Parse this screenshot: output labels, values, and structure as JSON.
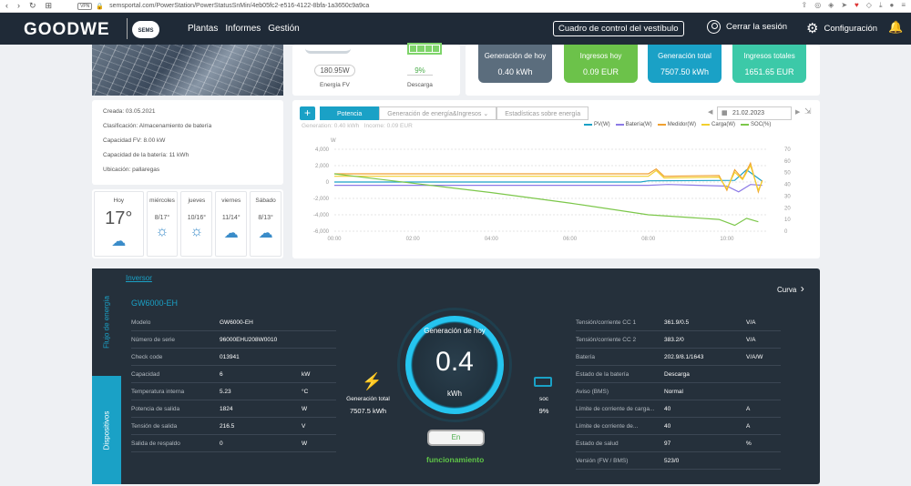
{
  "browser": {
    "url": "semsportal.com/PowerStation/PowerStatusSnMin/4eb05fc2-e516-4122-8bfa-1a3650c9a9ca",
    "vpn": "VPN"
  },
  "header": {
    "logo": "GOODWE",
    "sems": "SEMS",
    "menu": [
      "Plantas",
      "Informes",
      "Gestión"
    ],
    "lobby_button": "Cuadro de control del vestíbulo",
    "logout": "Cerrar la sesión",
    "config": "Configuración"
  },
  "plant_info": {
    "created": "Creada:  03.05.2021",
    "classification": "Clasificación:   Almacenamiento de batería",
    "pv_capacity": "Capacidad FV:  8.00 kW",
    "battery_capacity": "Capacidad de la batería:   11 kWh",
    "location": "Ubicación:  pallaregas"
  },
  "weather": [
    {
      "day": "Hoy",
      "temp": "17°",
      "icon": "cloud-icon"
    },
    {
      "day": "miércoles",
      "temp": "8/17°",
      "icon": "sun-icon"
    },
    {
      "day": "jueves",
      "temp": "10/16°",
      "icon": "sun-icon"
    },
    {
      "day": "viernes",
      "temp": "11/14°",
      "icon": "cloud-icon"
    },
    {
      "day": "Sábado",
      "temp": "8/13°",
      "icon": "cloud-icon"
    }
  ],
  "flow": {
    "pv_value": "180.95W",
    "pv_label": "Energía FV",
    "discharge_value": "9%",
    "discharge_label": "Descarga"
  },
  "summary": [
    {
      "title": "Generación de hoy",
      "value": "0.40 kWh",
      "color": "#5b6d7d"
    },
    {
      "title": "Ingresos hoy",
      "value": "0.09 EUR",
      "color": "#6cc24a"
    },
    {
      "title": "Generación total",
      "value": "7507.50 kWh",
      "color": "#1aa1c6"
    },
    {
      "title": "Ingresos totales",
      "value": "1651.65 EUR",
      "color": "#3cc9a8"
    }
  ],
  "chart_tabs": {
    "tab1": "Potencia",
    "tab2": "Generación de energía&Ingresos",
    "tab3": "Estadísticas sobre energía",
    "date": "21.02.2023",
    "generation": "Generation: 0.40 kWh",
    "income": "Income: 0.09 EUR"
  },
  "chart_data": {
    "type": "line",
    "x_ticks": [
      "00:00",
      "02:00",
      "04:00",
      "06:00",
      "08:00",
      "10:00"
    ],
    "y_left_label": "W",
    "y_left_ticks": [
      "4,000",
      "2,000",
      "0",
      "-2,000",
      "-4,000",
      "-6,000"
    ],
    "y_right_ticks": [
      "70",
      "60",
      "50",
      "40",
      "30",
      "20",
      "10",
      "0"
    ],
    "ylim_left": [
      -6000,
      4000
    ],
    "ylim_right": [
      0,
      70
    ],
    "grid": true,
    "legend_position": "top-right",
    "series": [
      {
        "name": "PV(W)",
        "color": "#1aa1c6",
        "axis": "left",
        "x": [
          0,
          7.8,
          8.0,
          10.2,
          10.5,
          10.9
        ],
        "y": [
          0,
          0,
          150,
          200,
          1500,
          100
        ]
      },
      {
        "name": "Batería(W)",
        "color": "#8c7ae6",
        "axis": "left",
        "x": [
          0,
          8.0,
          8.5,
          10.0,
          10.3,
          10.6,
          10.9
        ],
        "y": [
          -400,
          -400,
          -300,
          -500,
          -1200,
          -300,
          -400
        ]
      },
      {
        "name": "Medidor(W)",
        "color": "#f0a030",
        "axis": "left",
        "x": [
          0,
          8.0,
          8.2,
          8.4,
          9.8,
          10.0,
          10.2,
          10.4,
          10.6,
          10.8,
          10.9
        ],
        "y": [
          1000,
          1000,
          1600,
          700,
          800,
          -1000,
          1500,
          400,
          2300,
          -1200,
          200
        ]
      },
      {
        "name": "Carga(W)",
        "color": "#f2cf2e",
        "axis": "left",
        "x": [
          0,
          8.0,
          8.2,
          8.4,
          9.8,
          10.0,
          10.2,
          10.4,
          10.6,
          10.8,
          10.9
        ],
        "y": [
          700,
          700,
          1400,
          500,
          600,
          -800,
          1200,
          300,
          2000,
          -1000,
          100
        ]
      },
      {
        "name": "SOC(%)",
        "color": "#7cc74a",
        "axis": "right",
        "x": [
          0,
          2,
          4,
          6,
          8,
          9.8,
          10.2,
          10.5,
          10.8
        ],
        "y": [
          49,
          41,
          33,
          24,
          14,
          10,
          5,
          11,
          8
        ]
      }
    ]
  },
  "inverter": {
    "link": "Inversor",
    "model_title": "GW6000-EH",
    "curve": "Curva",
    "tab_flow": "Flujo de energía",
    "tab_devices": "Dispositivos",
    "left_rows": [
      {
        "k": "Modelo",
        "v": "GW6000-EH",
        "u": ""
      },
      {
        "k": "Número de serie",
        "v": "96000EHU208W0010",
        "u": ""
      },
      {
        "k": "Check code",
        "v": "013941",
        "u": ""
      },
      {
        "k": "Capacidad",
        "v": "6",
        "u": "kW"
      },
      {
        "k": "Temperatura interna",
        "v": "5.23",
        "u": "°C"
      },
      {
        "k": "Potencia de salida",
        "v": "1824",
        "u": "W"
      },
      {
        "k": "Tensión de salida",
        "v": "216.5",
        "u": "V"
      },
      {
        "k": "Salida de respaldo",
        "v": "0",
        "u": "W"
      }
    ],
    "right_rows": [
      {
        "k": "Tensión/corriente CC 1",
        "v": "361.9/0.5",
        "u": "V/A"
      },
      {
        "k": "Tensión/corriente CC 2",
        "v": "383.2/0",
        "u": "V/A"
      },
      {
        "k": "Batería",
        "v": "202.9/8.1/1643",
        "u": "V/A/W"
      },
      {
        "k": "Estado de la batería",
        "v": "Descarga",
        "u": ""
      },
      {
        "k": "Aviso (BMS)",
        "v": "Normal",
        "u": ""
      },
      {
        "k": "Límite de corriente de carga...",
        "v": "40",
        "u": "A"
      },
      {
        "k": "Límite de corriente de...",
        "v": "40",
        "u": "A"
      },
      {
        "k": "Estado de salud",
        "v": "97",
        "u": "%"
      },
      {
        "k": "Versión (FW / BMS)",
        "v": "523/0",
        "u": ""
      }
    ],
    "gauge_label": "Generación de hoy",
    "gauge_value": "0.4",
    "gauge_unit": "kWh",
    "total_label": "Generación total",
    "total_value": "7507.5 kWh",
    "soc_label": "soc",
    "soc_value": "9%",
    "status_button": "En",
    "status_text": "funcionamiento"
  }
}
